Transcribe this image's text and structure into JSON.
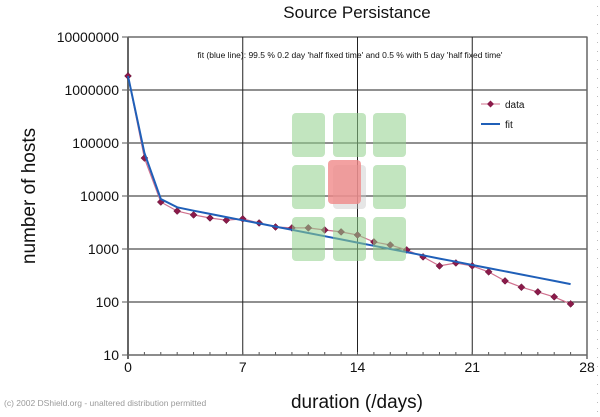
{
  "chart_data": {
    "type": "line",
    "title": "Source Persistance",
    "xlabel": "duration (/days)",
    "ylabel": "number of hosts",
    "yscale": "log",
    "xlim": [
      0,
      28
    ],
    "ylim": [
      10,
      10000000
    ],
    "x_ticks": [
      0,
      7,
      14,
      21,
      28
    ],
    "x_tick_labels": [
      "0",
      "7",
      "14",
      "21",
      "28"
    ],
    "y_ticks": [
      10,
      100,
      1000,
      10000,
      100000,
      1000000,
      10000000
    ],
    "y_tick_labels": [
      "10",
      "100",
      "1000",
      "10000",
      "100000",
      "1000000",
      "10000000"
    ],
    "grid": true,
    "legend_position": "top-right",
    "annotation": "fit (blue line): 99.5 % 0.2 day 'half fixed time' and 0.5 % with 5 day 'half fixed time'",
    "x": [
      0,
      1,
      2,
      3,
      4,
      5,
      6,
      7,
      8,
      9,
      10,
      11,
      12,
      13,
      14,
      15,
      16,
      17,
      18,
      19,
      20,
      21,
      22,
      23,
      24,
      25,
      26,
      27
    ],
    "series": [
      {
        "name": "data",
        "color": "#8b1a4a",
        "line_color": "#d0708e",
        "marker": "diamond",
        "values": [
          1840000,
          52000,
          7700,
          5200,
          4400,
          3850,
          3500,
          3700,
          3100,
          2600,
          2500,
          2500,
          2280,
          2100,
          1840,
          1360,
          1190,
          960,
          710,
          480,
          545,
          480,
          370,
          250,
          190,
          155,
          125,
          92
        ]
      },
      {
        "name": "fit",
        "color": "#1f5fb8",
        "marker": "none",
        "values": [
          1840000,
          65200,
          8760,
          6125,
          5283,
          4600,
          4004,
          3486,
          3035,
          2641,
          2300,
          2002,
          1743,
          1517,
          1321,
          1150,
          1001,
          871,
          759,
          660,
          575,
          500,
          436,
          379,
          330,
          288,
          250,
          218
        ]
      }
    ]
  },
  "footer": {
    "copyright": "(c) 2002 DShield.org - unaltered distribution permitted"
  },
  "overlay": {
    "grid_cells": [
      {
        "row": 0,
        "col": 0,
        "state": "green"
      },
      {
        "row": 0,
        "col": 1,
        "state": "green"
      },
      {
        "row": 0,
        "col": 2,
        "state": "green"
      },
      {
        "row": 1,
        "col": 0,
        "state": "green"
      },
      {
        "row": 1,
        "col": 1,
        "state": "red"
      },
      {
        "row": 1,
        "col": 2,
        "state": "green"
      },
      {
        "row": 2,
        "col": 0,
        "state": "green"
      },
      {
        "row": 2,
        "col": 1,
        "state": "green"
      },
      {
        "row": 2,
        "col": 2,
        "state": "green"
      }
    ],
    "colors": {
      "green": "#8fd08a",
      "red": "#f08a8a",
      "shadow": "#c8c8c8"
    }
  }
}
